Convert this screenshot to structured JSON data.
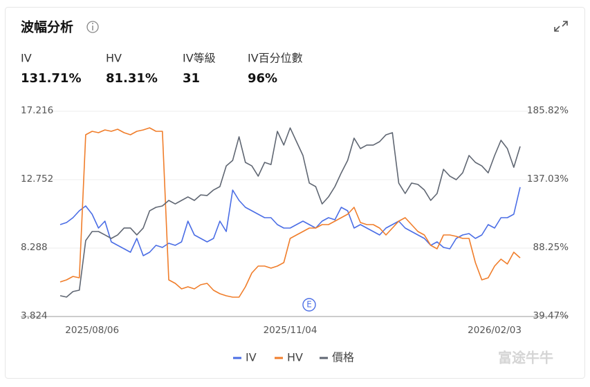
{
  "header": {
    "title": "波幅分析"
  },
  "stats": [
    {
      "label": "IV",
      "value": "131.71%"
    },
    {
      "label": "HV",
      "value": "81.31%"
    },
    {
      "label": "IV等級",
      "value": "31"
    },
    {
      "label": "IV百分位數",
      "value": "96%"
    }
  ],
  "event_marker": "E",
  "watermark": "富途牛牛",
  "chart_data": {
    "type": "line",
    "categories": [
      null,
      null,
      null,
      null,
      null,
      "2025/08/06",
      null,
      null,
      null,
      null,
      null,
      null,
      null,
      null,
      null,
      null,
      null,
      null,
      null,
      null,
      null,
      null,
      null,
      null,
      null,
      null,
      null,
      null,
      null,
      null,
      null,
      null,
      null,
      null,
      null,
      null,
      "2025/11/04",
      null,
      null,
      null,
      null,
      null,
      null,
      null,
      null,
      null,
      null,
      null,
      null,
      null,
      null,
      null,
      null,
      null,
      null,
      null,
      null,
      null,
      null,
      null,
      null,
      null,
      null,
      null,
      null,
      null,
      null,
      null,
      "2026/02/03",
      null,
      null,
      null,
      null
    ],
    "ylim": [
      3.824,
      17.216
    ],
    "yticks": [
      3.824,
      8.288,
      12.752,
      17.216
    ],
    "y2lim": [
      39.47,
      185.82
    ],
    "y2ticks": [
      {
        "value": 39.47,
        "label": "39.47%"
      },
      {
        "value": 88.25,
        "label": "88.25%"
      },
      {
        "value": 137.03,
        "label": "137.03%"
      },
      {
        "value": 185.82,
        "label": "185.82%"
      }
    ],
    "grid": true,
    "legend": "bottom",
    "series": [
      {
        "name": "IV",
        "color": "#4a6de5",
        "axis": "y2",
        "values": [
          105.01,
          106.49,
          109.94,
          114.87,
          118.32,
          112.4,
          102.55,
          107.48,
          92.69,
          90.23,
          87.76,
          85.3,
          95.16,
          82.84,
          85.3,
          90.23,
          88.75,
          91.71,
          90.23,
          92.69,
          107.48,
          97.62,
          95.16,
          92.69,
          95.16,
          107.48,
          100.08,
          129.65,
          122.26,
          117.33,
          114.87,
          112.4,
          109.94,
          109.94,
          105.01,
          102.55,
          102.55,
          105.01,
          107.48,
          105.01,
          102.55,
          107.48,
          109.94,
          108.46,
          117.33,
          114.87,
          102.55,
          105.01,
          102.55,
          100.08,
          97.62,
          102.55,
          105.01,
          107.48,
          102.55,
          100.08,
          97.62,
          95.16,
          90.23,
          92.69,
          88.75,
          87.76,
          95.16,
          97.62,
          98.61,
          95.16,
          97.62,
          105.01,
          102.55,
          109.94,
          109.94,
          112.4,
          131.71
        ]
      },
      {
        "name": "HV",
        "color": "#f07d2a",
        "axis": "y2",
        "values": [
          64.11,
          65.59,
          68.05,
          67.07,
          169.08,
          171.54,
          170.55,
          172.53,
          171.54,
          173.02,
          170.55,
          169.08,
          171.54,
          172.53,
          174.0,
          171.54,
          171.54,
          65.59,
          63.12,
          59.18,
          60.66,
          59.18,
          62.14,
          63.12,
          58.2,
          55.73,
          54.25,
          53.27,
          53.27,
          60.66,
          70.52,
          75.44,
          75.44,
          73.97,
          75.44,
          77.91,
          95.16,
          97.62,
          100.08,
          102.55,
          102.55,
          105.01,
          105.01,
          107.48,
          109.94,
          112.4,
          117.33,
          106.49,
          105.01,
          105.01,
          102.55,
          97.62,
          102.55,
          107.48,
          109.94,
          105.01,
          100.08,
          97.62,
          90.23,
          87.76,
          97.62,
          97.62,
          96.63,
          95.16,
          95.16,
          77.91,
          65.59,
          67.07,
          75.44,
          80.37,
          76.92,
          85.3,
          81.31
        ]
      },
      {
        "name": "價格",
        "color": "#5f6672",
        "axis": "y",
        "values": [
          5.18,
          5.09,
          5.45,
          5.54,
          8.78,
          9.37,
          9.37,
          9.15,
          8.92,
          9.15,
          9.6,
          9.6,
          9.15,
          9.6,
          10.72,
          10.95,
          11.04,
          11.4,
          11.17,
          11.4,
          11.63,
          11.4,
          11.76,
          11.72,
          12.08,
          12.3,
          13.65,
          14.01,
          15.55,
          13.88,
          13.65,
          12.98,
          13.88,
          13.74,
          15.91,
          15.01,
          16.13,
          15.23,
          14.33,
          12.53,
          12.3,
          11.17,
          11.63,
          12.3,
          13.2,
          14.01,
          15.46,
          14.78,
          15.01,
          15.01,
          15.23,
          15.68,
          15.82,
          12.53,
          11.85,
          12.53,
          12.44,
          12.08,
          11.4,
          11.85,
          13.43,
          12.98,
          12.75,
          13.2,
          14.33,
          13.88,
          13.65,
          13.2,
          14.33,
          15.32,
          14.78,
          13.56,
          14.92
        ]
      }
    ]
  }
}
